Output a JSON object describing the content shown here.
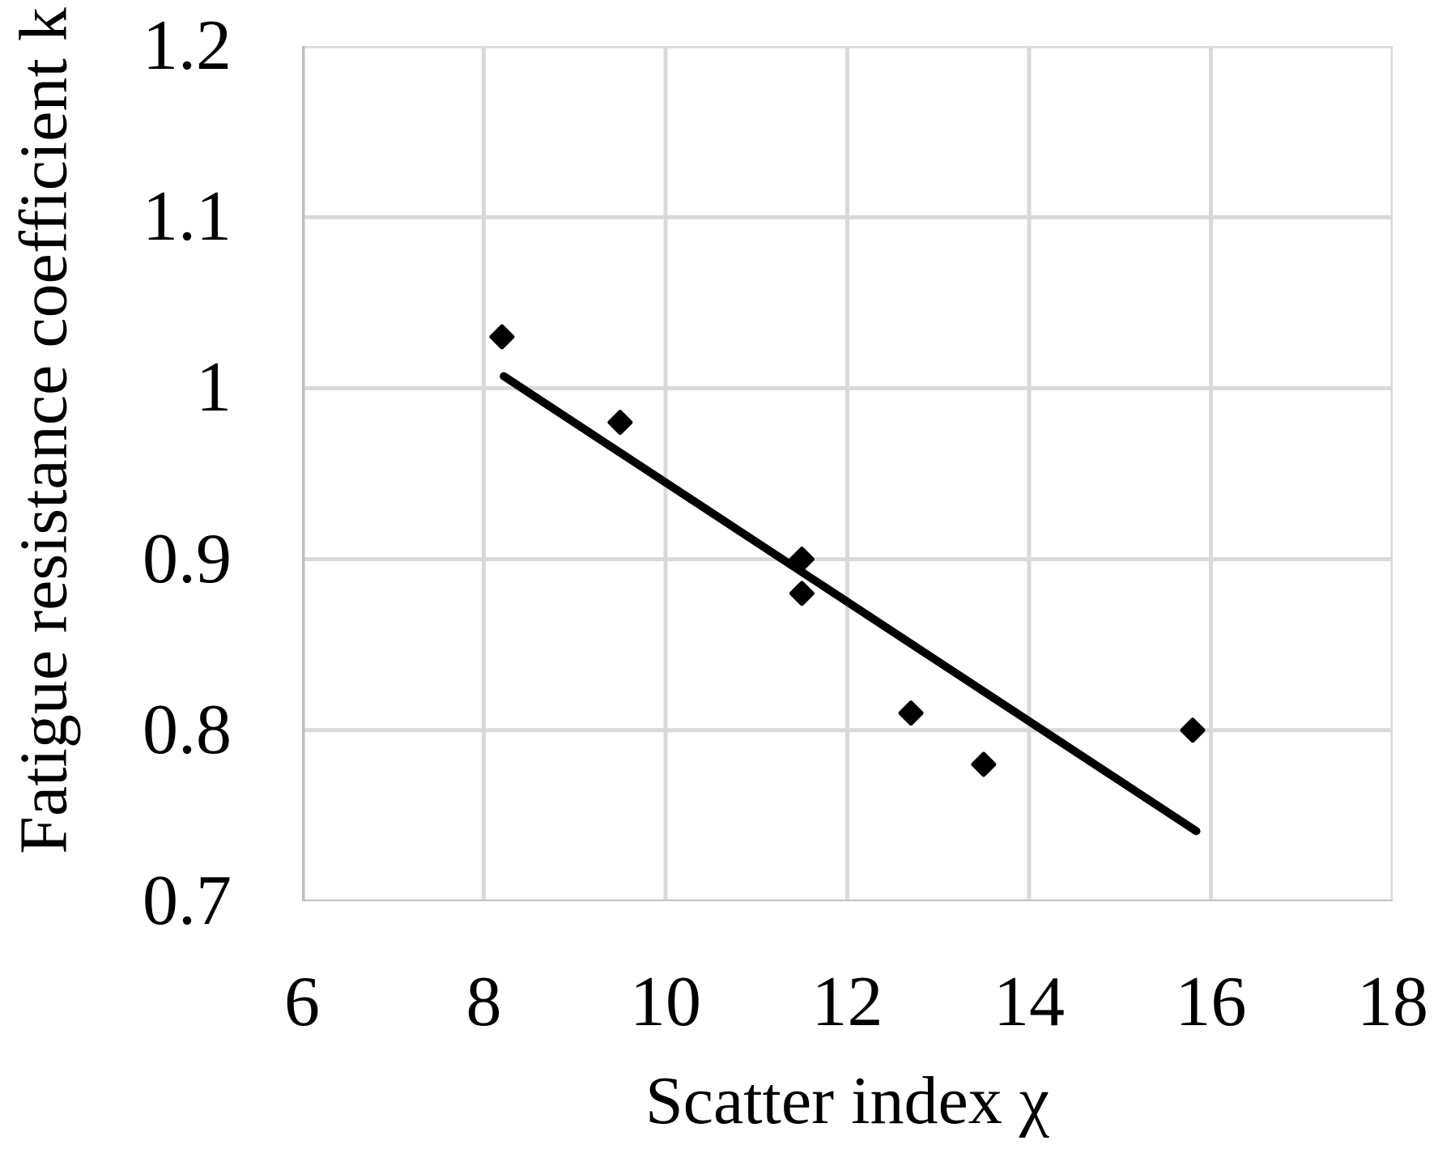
{
  "figure": {
    "background": "#ffffff"
  },
  "chart_data": {
    "type": "scatter",
    "title": "",
    "xlabel": "Scatter index χ",
    "ylabel": "Fatigue resistance coefficient k",
    "xlim": [
      6,
      18
    ],
    "ylim": [
      0.7,
      1.2
    ],
    "x_ticks": [
      6,
      8,
      10,
      12,
      14,
      16,
      18
    ],
    "x_tick_labels": [
      "6",
      "8",
      "10",
      "12",
      "14",
      "16",
      "18"
    ],
    "y_ticks": [
      1.2,
      1.1,
      1.0,
      0.9,
      0.8,
      0.7
    ],
    "y_tick_labels": [
      "1.2",
      "1.1",
      "1",
      "0.9",
      "0.8",
      "0.7"
    ],
    "grid": true,
    "legend": false,
    "series": [
      {
        "name": "fatigue-test-points",
        "marker": "filled-diamond",
        "color": "#000000",
        "points": [
          [
            8.2,
            1.03
          ],
          [
            9.5,
            0.98
          ],
          [
            11.5,
            0.9
          ],
          [
            11.5,
            0.88
          ],
          [
            12.7,
            0.81
          ],
          [
            13.5,
            0.78
          ],
          [
            15.8,
            0.8
          ]
        ]
      }
    ],
    "trendline": {
      "type": "linear",
      "color": "#000000",
      "start": [
        8.22,
        1.007
      ],
      "end": [
        15.84,
        0.741
      ]
    },
    "colors": {
      "gridline": "#d9d9d9",
      "axis_line": "#bfbfbf",
      "text": "#000000"
    }
  }
}
